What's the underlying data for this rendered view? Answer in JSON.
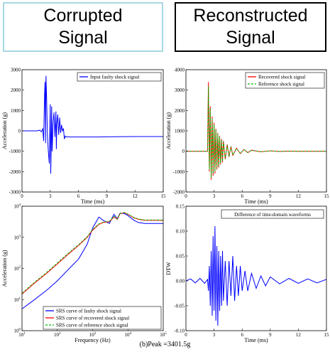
{
  "headers": {
    "left": [
      "Corrupted",
      "Signal"
    ],
    "right": [
      "Reconstructed",
      "Signal"
    ]
  },
  "caption": "(b)Peak =3401.5g",
  "colors": {
    "blue": "#0000ff",
    "red": "#ff0000",
    "green": "#00bb00",
    "header_left_border": "#a8d8e2",
    "header_right_border": "#000000"
  },
  "chart_data": [
    {
      "id": "faulty",
      "type": "line",
      "xlabel": "Time (ms)",
      "ylabel": "Acceleration (g)",
      "xlim": [
        0,
        15
      ],
      "ylim": [
        -3000,
        3000
      ],
      "xticks": [
        "0",
        "3",
        "6",
        "9",
        "12",
        "15"
      ],
      "yticks": [
        "-3000",
        "-2000",
        "-1000",
        "0",
        "1000",
        "2000",
        "3000"
      ],
      "legend_position": "top-right",
      "series": [
        {
          "name": "Input faulty shock signal",
          "color": "#0000ff",
          "x": [
            0,
            1.6,
            1.9,
            2.05,
            2.2,
            2.3,
            2.4,
            2.45,
            2.5,
            2.55,
            2.6,
            2.65,
            2.7,
            2.8,
            2.9,
            3.0,
            3.05,
            3.1,
            3.15,
            3.2,
            3.3,
            3.4,
            3.5,
            3.6,
            3.65,
            3.7,
            3.8,
            3.9,
            4.0,
            4.1,
            4.2,
            4.3,
            4.4,
            4.5,
            4.6,
            4.7,
            4.8,
            4.9,
            5.0,
            6,
            8,
            10,
            12,
            13,
            14,
            15
          ],
          "y": [
            0,
            0,
            30,
            -50,
            100,
            -500,
            1800,
            2400,
            -600,
            2700,
            1900,
            800,
            -200,
            -1000,
            -1600,
            1300,
            -2100,
            -800,
            1200,
            -1000,
            400,
            900,
            -300,
            950,
            -900,
            300,
            800,
            -200,
            650,
            -100,
            300,
            0,
            120,
            -400,
            -250,
            -300,
            -300,
            -290,
            -300,
            -300,
            -300,
            -290,
            -280,
            -280,
            -280,
            -280
          ]
        }
      ]
    },
    {
      "id": "recon",
      "type": "line",
      "xlabel": "Time (ms)",
      "ylabel": "Acceleration (g)",
      "xlim": [
        0,
        15
      ],
      "ylim": [
        -2000,
        4000
      ],
      "xticks": [
        "0",
        "3",
        "6",
        "9",
        "12",
        "15"
      ],
      "yticks": [
        "-2000",
        "-1000",
        "0",
        "1000",
        "2000",
        "3000",
        "4000"
      ],
      "legend_position": "top-right",
      "series": [
        {
          "name": "Recovered shock signal",
          "color": "#ff0000",
          "x": [
            0,
            2.3,
            2.4,
            2.5,
            2.6,
            2.7,
            2.8,
            2.9,
            3.0,
            3.1,
            3.2,
            3.3,
            3.4,
            3.5,
            3.6,
            3.7,
            3.8,
            3.9,
            4.0,
            4.2,
            4.4,
            4.6,
            4.8,
            5.0,
            5.4,
            5.8,
            6.2,
            6.6,
            7.0,
            8,
            9,
            10,
            11,
            12,
            15
          ],
          "y": [
            0,
            0,
            3400,
            -1000,
            2200,
            -1400,
            1700,
            -1200,
            1400,
            -1100,
            1100,
            -900,
            900,
            -800,
            750,
            -650,
            600,
            -550,
            500,
            -400,
            330,
            -280,
            240,
            -200,
            150,
            -120,
            90,
            -70,
            50,
            -30,
            20,
            -10,
            5,
            0,
            0
          ]
        },
        {
          "name": "Reference shock signal",
          "color": "#00bb00",
          "x": [
            0,
            2.3,
            2.4,
            2.5,
            2.6,
            2.7,
            2.8,
            2.9,
            3.0,
            3.1,
            3.2,
            3.3,
            3.4,
            3.5,
            3.6,
            3.7,
            3.8,
            3.9,
            4.0,
            4.2,
            4.4,
            4.6,
            4.8,
            5.0,
            5.4,
            5.8,
            6.2,
            6.6,
            7.0,
            8,
            9,
            10,
            11,
            12,
            15
          ],
          "y": [
            0,
            0,
            3200,
            -900,
            2100,
            -1300,
            1600,
            -1100,
            1300,
            -1000,
            1050,
            -850,
            850,
            -750,
            700,
            -600,
            560,
            -500,
            470,
            -380,
            310,
            -260,
            220,
            -180,
            140,
            -110,
            80,
            -60,
            45,
            -25,
            15,
            -8,
            4,
            0,
            0
          ]
        }
      ]
    },
    {
      "id": "srs",
      "type": "line",
      "xlabel": "Frequency (Hz)",
      "ylabel": "Acceleration (g)",
      "xscale": "log",
      "yscale": "log",
      "xlim": [
        10,
        100000
      ],
      "ylim": [
        1,
        10000
      ],
      "xticks": [
        "10^1",
        "10^2",
        "10^3",
        "10^4",
        "10^5"
      ],
      "yticks": [
        "10^0",
        "10^1",
        "10^2",
        "10^3",
        "10^4"
      ],
      "legend_position": "bottom-right",
      "series": [
        {
          "name": "SRS curve of faulty shock signal",
          "color": "#0000ff",
          "x": [
            10,
            20,
            50,
            100,
            200,
            400,
            700,
            1000,
            1500,
            2000,
            3000,
            4000,
            5000,
            6000,
            8000,
            10000,
            15000,
            20000,
            30000,
            50000,
            100000
          ],
          "y": [
            5,
            9,
            20,
            40,
            90,
            200,
            600,
            2000,
            4500,
            3500,
            2800,
            5500,
            4000,
            6000,
            5800,
            5000,
            3500,
            3000,
            2800,
            2800,
            2800
          ]
        },
        {
          "name": "SRS curve of recovered shock signal",
          "color": "#ff0000",
          "x": [
            10,
            20,
            50,
            100,
            200,
            400,
            700,
            1000,
            1500,
            2000,
            3000,
            4000,
            5000,
            6000,
            8000,
            10000,
            15000,
            20000,
            30000,
            50000,
            100000
          ],
          "y": [
            15,
            30,
            70,
            140,
            280,
            550,
            1000,
            1700,
            2600,
            3000,
            3200,
            4500,
            3800,
            5800,
            6200,
            5500,
            4200,
            3800,
            3500,
            3500,
            3500
          ]
        },
        {
          "name": "SRS curve of reference shock signal",
          "color": "#00bb00",
          "x": [
            10,
            20,
            50,
            100,
            200,
            400,
            700,
            1000,
            1500,
            2000,
            3000,
            4000,
            5000,
            6000,
            8000,
            10000,
            15000,
            20000,
            30000,
            50000,
            100000
          ],
          "y": [
            16,
            32,
            75,
            150,
            300,
            580,
            1050,
            1800,
            2700,
            3100,
            3300,
            4700,
            3900,
            5900,
            6300,
            5600,
            4300,
            3900,
            3600,
            3600,
            3600
          ]
        }
      ]
    },
    {
      "id": "dtw",
      "type": "line",
      "xlabel": "Time (ms)",
      "ylabel": "DTW",
      "xlim": [
        0,
        15
      ],
      "ylim": [
        -0.1,
        0.15
      ],
      "xticks": [
        "0",
        "3",
        "6",
        "9",
        "12",
        "15"
      ],
      "yticks": [
        "-0.10",
        "-0.05",
        "0.00",
        "0.05",
        "0.10",
        "0.15"
      ],
      "annotation": "Difference of time-domain waveforms",
      "series": [
        {
          "name": "",
          "color": "#0000ff",
          "x": [
            0,
            0.5,
            1,
            1.5,
            2,
            2.3,
            2.4,
            2.5,
            2.6,
            2.7,
            2.8,
            2.9,
            3.0,
            3.1,
            3.2,
            3.3,
            3.4,
            3.5,
            3.6,
            3.7,
            3.8,
            3.9,
            4.0,
            4.2,
            4.4,
            4.6,
            4.8,
            5.0,
            5.2,
            5.4,
            5.6,
            5.8,
            6.0,
            6.3,
            6.6,
            7.0,
            7.5,
            8,
            8.5,
            9,
            10,
            11,
            12,
            13,
            14,
            15
          ],
          "y": [
            0,
            0.004,
            -0.004,
            0.005,
            -0.005,
            0.003,
            -0.02,
            0.03,
            -0.05,
            0.06,
            -0.07,
            0.09,
            -0.06,
            0.11,
            -0.08,
            0.07,
            -0.09,
            0.06,
            -0.06,
            0.05,
            -0.05,
            0.06,
            -0.04,
            0.04,
            -0.05,
            0.04,
            -0.03,
            0.05,
            -0.04,
            0.03,
            -0.03,
            0.03,
            -0.02,
            0.02,
            -0.02,
            0.015,
            -0.015,
            0.01,
            -0.01,
            0.008,
            -0.006,
            0.005,
            -0.005,
            0.004,
            -0.004,
            0.003
          ]
        }
      ]
    }
  ]
}
